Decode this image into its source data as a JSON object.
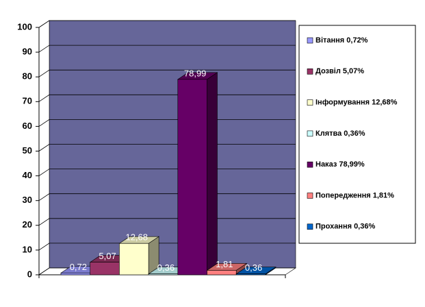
{
  "chart_data": {
    "type": "bar3d",
    "series": [
      {
        "name": "Вітання 0,72%",
        "color": "#9999ff",
        "values": [
          0.72
        ],
        "value_labels": [
          "0,72"
        ]
      },
      {
        "name": "Дозвіл 5,07%",
        "color": "#993366",
        "values": [
          5.07
        ],
        "value_labels": [
          "5,07"
        ]
      },
      {
        "name": "Інформування 12,68%",
        "color": "#ffffcc",
        "values": [
          12.68
        ],
        "value_labels": [
          "12,68"
        ]
      },
      {
        "name": "Клятва 0,36%",
        "color": "#ccffff",
        "values": [
          0.36
        ],
        "value_labels": [
          "0,36"
        ]
      },
      {
        "name": "Наказ 78,99%",
        "color": "#660066",
        "values": [
          78.99
        ],
        "value_labels": [
          "78,99"
        ]
      },
      {
        "name": "Попередження 1,81%",
        "color": "#ff8080",
        "values": [
          1.81
        ],
        "value_labels": [
          "1,81"
        ]
      },
      {
        "name": "Прохання 0,36%",
        "color": "#0066cc",
        "values": [
          0.36
        ],
        "value_labels": [
          "0,36"
        ]
      }
    ],
    "ylim": [
      0,
      100
    ],
    "yticks": [
      0,
      10,
      20,
      30,
      40,
      50,
      60,
      70,
      80,
      90,
      100
    ],
    "grid": true,
    "wall_color": "#666699",
    "legend": "right"
  }
}
